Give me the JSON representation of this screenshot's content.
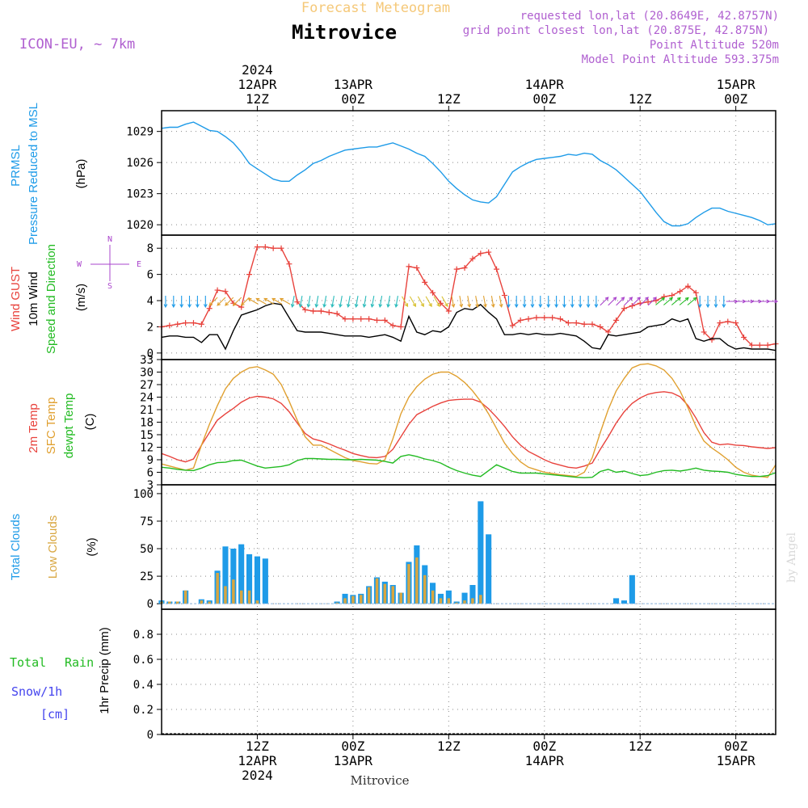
{
  "header": {
    "product": "Forecast Meteogram",
    "location": "Mitrovice",
    "model": "ICON-EU, ~ 7km",
    "requested": "requested lon,lat (20.8649E, 42.8757N)",
    "grid_point": "grid point closest lon,lat (20.875E, 42.875N)",
    "point_altitude": "Point Altitude 520m",
    "model_altitude": "Model Point Altitude 593.375m",
    "footer_location": "Mitrovice",
    "watermark": "by Angel"
  },
  "time_axis": {
    "year": "2024",
    "top": [
      {
        "hour": 12,
        "line1": "2024",
        "line2": "12APR",
        "line3": "12Z"
      },
      {
        "hour": 24,
        "line1": "",
        "line2": "13APR",
        "line3": "00Z"
      },
      {
        "hour": 36,
        "line1": "",
        "line2": "",
        "line3": "12Z"
      },
      {
        "hour": 48,
        "line1": "",
        "line2": "14APR",
        "line3": "00Z"
      },
      {
        "hour": 60,
        "line1": "",
        "line2": "",
        "line3": "12Z"
      },
      {
        "hour": 72,
        "line1": "",
        "line2": "15APR",
        "line3": "00Z"
      }
    ],
    "bottom": [
      {
        "hour": 12,
        "line1": "12Z",
        "line2": "12APR",
        "line3": "2024"
      },
      {
        "hour": 24,
        "line1": "00Z",
        "line2": "13APR",
        "line3": ""
      },
      {
        "hour": 36,
        "line1": "12Z",
        "line2": "",
        "line3": ""
      },
      {
        "hour": 48,
        "line1": "00Z",
        "line2": "14APR",
        "line3": ""
      },
      {
        "hour": 60,
        "line1": "12Z",
        "line2": "",
        "line3": ""
      },
      {
        "hour": 72,
        "line1": "00Z",
        "line2": "15APR",
        "line3": ""
      }
    ],
    "start_hour": 0,
    "end_hour": 77
  },
  "colors": {
    "pressure": "#1e9be8",
    "gust": "#e8423c",
    "wind": "#000000",
    "direction_label": "#22bb22",
    "temp2m": "#e8423c",
    "sfc": "#e0a030",
    "dewpt": "#22bb22",
    "total_clouds": "#1e9be8",
    "low_clouds": "#d8a640",
    "rain": "#22bb22",
    "snow": "#4444ee",
    "compass": "#aa44cc",
    "header_orange": "#f5c878",
    "header_purple": "#b060d0",
    "grid": "#888888"
  },
  "chart_data": [
    {
      "type": "line",
      "id": "pressure",
      "labels": [
        "PRMSL",
        "Pressure Reduced to MSL"
      ],
      "ylabel": "(hPa)",
      "ylim": [
        1019,
        1031
      ],
      "yticks": [
        1020,
        1023,
        1026,
        1029
      ],
      "grid": true,
      "x": [
        0,
        1,
        2,
        3,
        4,
        5,
        6,
        7,
        8,
        9,
        10,
        11,
        12,
        13,
        14,
        15,
        16,
        17,
        18,
        19,
        20,
        21,
        22,
        23,
        24,
        25,
        26,
        27,
        28,
        29,
        30,
        31,
        32,
        33,
        34,
        35,
        36,
        37,
        38,
        39,
        40,
        41,
        42,
        43,
        44,
        45,
        46,
        47,
        48,
        49,
        50,
        51,
        52,
        53,
        54,
        55,
        56,
        57,
        58,
        59,
        60,
        61,
        62,
        63,
        64,
        65,
        66,
        67,
        68,
        69,
        70,
        71,
        72,
        73,
        74,
        75,
        76,
        77
      ],
      "series": [
        {
          "name": "PRMSL",
          "values": [
            1029.3,
            1029.4,
            1029.4,
            1029.7,
            1029.9,
            1029.5,
            1029.1,
            1029.0,
            1028.5,
            1027.9,
            1027.0,
            1025.9,
            1025.4,
            1024.9,
            1024.4,
            1024.2,
            1024.2,
            1024.8,
            1025.3,
            1025.9,
            1026.2,
            1026.6,
            1026.9,
            1027.2,
            1027.3,
            1027.4,
            1027.5,
            1027.5,
            1027.7,
            1027.9,
            1027.6,
            1027.3,
            1026.9,
            1026.6,
            1025.9,
            1025.1,
            1024.2,
            1023.5,
            1022.9,
            1022.4,
            1022.2,
            1022.1,
            1022.7,
            1023.9,
            1025.1,
            1025.6,
            1026.0,
            1026.3,
            1026.4,
            1026.5,
            1026.6,
            1026.8,
            1026.7,
            1026.9,
            1026.8,
            1026.2,
            1025.8,
            1025.3,
            1024.6,
            1023.9,
            1023.2,
            1022.2,
            1021.2,
            1020.3,
            1019.9,
            1019.9,
            1020.1,
            1020.7,
            1021.2,
            1021.6,
            1021.6,
            1021.3,
            1021.1,
            1020.9,
            1020.7,
            1020.4,
            1020.0,
            1020.1
          ]
        }
      ]
    },
    {
      "type": "line",
      "id": "wind",
      "labels": [
        "Wind GUST",
        "10m Wind",
        "Speed and Direction"
      ],
      "ylabel": "(m/s)",
      "ylim": [
        -0.5,
        9
      ],
      "yticks": [
        0,
        2,
        4,
        6,
        8
      ],
      "grid": true,
      "compass": {
        "n": "N",
        "w": "W",
        "e": "E",
        "s": "S"
      },
      "x": [
        0,
        1,
        2,
        3,
        4,
        5,
        6,
        7,
        8,
        9,
        10,
        11,
        12,
        13,
        14,
        15,
        16,
        17,
        18,
        19,
        20,
        21,
        22,
        23,
        24,
        25,
        26,
        27,
        28,
        29,
        30,
        31,
        32,
        33,
        34,
        35,
        36,
        37,
        38,
        39,
        40,
        41,
        42,
        43,
        44,
        45,
        46,
        47,
        48,
        49,
        50,
        51,
        52,
        53,
        54,
        55,
        56,
        57,
        58,
        59,
        60,
        61,
        62,
        63,
        64,
        65,
        66,
        67,
        68,
        69,
        70,
        71,
        72,
        73,
        74,
        75,
        76,
        77
      ],
      "series": [
        {
          "name": "Wind GUST",
          "values": [
            2.0,
            2.1,
            2.2,
            2.3,
            2.3,
            2.2,
            3.4,
            4.8,
            4.7,
            3.8,
            3.5,
            6.0,
            8.1,
            8.1,
            8.0,
            8.0,
            6.8,
            3.9,
            3.3,
            3.2,
            3.2,
            3.1,
            3.0,
            2.6,
            2.6,
            2.6,
            2.6,
            2.5,
            2.5,
            2.1,
            2.0,
            6.6,
            6.5,
            5.4,
            4.6,
            3.8,
            3.2,
            6.4,
            6.5,
            7.2,
            7.6,
            7.7,
            6.4,
            4.4,
            2.1,
            2.5,
            2.6,
            2.7,
            2.7,
            2.7,
            2.6,
            2.3,
            2.3,
            2.2,
            2.2,
            2.0,
            1.6,
            2.5,
            3.4,
            3.6,
            3.8,
            3.9,
            4.0,
            4.3,
            4.4,
            4.7,
            5.1,
            4.6,
            1.6,
            1.0,
            2.3,
            2.4,
            2.3,
            1.2,
            0.6,
            0.6,
            0.6,
            0.7
          ]
        },
        {
          "name": "10m Wind",
          "values": [
            1.2,
            1.3,
            1.3,
            1.2,
            1.2,
            0.8,
            1.4,
            1.4,
            0.3,
            1.7,
            2.9,
            3.1,
            3.3,
            3.6,
            3.8,
            3.7,
            2.7,
            1.7,
            1.6,
            1.6,
            1.6,
            1.5,
            1.4,
            1.3,
            1.3,
            1.3,
            1.2,
            1.3,
            1.4,
            1.2,
            0.9,
            2.8,
            1.6,
            1.4,
            1.7,
            1.6,
            2.0,
            3.1,
            3.4,
            3.3,
            3.7,
            3.1,
            2.6,
            1.4,
            1.4,
            1.5,
            1.4,
            1.5,
            1.4,
            1.4,
            1.5,
            1.4,
            1.3,
            0.9,
            0.4,
            0.3,
            1.4,
            1.3,
            1.4,
            1.5,
            1.6,
            2.0,
            2.1,
            2.2,
            2.6,
            2.4,
            2.6,
            1.1,
            0.9,
            1.1,
            1.1,
            0.6,
            0.3,
            0.4,
            0.3,
            0.3,
            0.3,
            0.2
          ]
        }
      ]
    },
    {
      "type": "line",
      "id": "temperature",
      "labels": [
        "2m Temp",
        "SFC Temp",
        "dewpt Temp"
      ],
      "ylabel": "(C)",
      "ylim": [
        3,
        33
      ],
      "yticks": [
        3,
        6,
        9,
        12,
        15,
        18,
        21,
        24,
        27,
        30,
        33
      ],
      "grid": true,
      "x": [
        0,
        1,
        2,
        3,
        4,
        5,
        6,
        7,
        8,
        9,
        10,
        11,
        12,
        13,
        14,
        15,
        16,
        17,
        18,
        19,
        20,
        21,
        22,
        23,
        24,
        25,
        26,
        27,
        28,
        29,
        30,
        31,
        32,
        33,
        34,
        35,
        36,
        37,
        38,
        39,
        40,
        41,
        42,
        43,
        44,
        45,
        46,
        47,
        48,
        49,
        50,
        51,
        52,
        53,
        54,
        55,
        56,
        57,
        58,
        59,
        60,
        61,
        62,
        63,
        64,
        65,
        66,
        67,
        68,
        69,
        70,
        71,
        72,
        73,
        74,
        75,
        76,
        77
      ],
      "series": [
        {
          "name": "2m Temp",
          "values": [
            10.5,
            9.8,
            9.0,
            8.5,
            9.2,
            12.5,
            15.5,
            18.5,
            20.0,
            21.3,
            22.8,
            23.8,
            24.2,
            24.0,
            23.6,
            22.5,
            20.5,
            17.8,
            15.3,
            14.0,
            13.5,
            12.8,
            12.0,
            11.3,
            10.5,
            10.0,
            9.6,
            9.5,
            9.8,
            11.5,
            14.5,
            17.5,
            19.8,
            20.8,
            21.8,
            22.6,
            23.2,
            23.4,
            23.5,
            23.5,
            22.8,
            21.2,
            19.2,
            17.0,
            14.5,
            12.5,
            11.0,
            10.0,
            9.0,
            8.2,
            7.7,
            7.2,
            7.0,
            7.5,
            8.2,
            11.5,
            14.5,
            17.8,
            20.5,
            22.5,
            23.8,
            24.7,
            25.1,
            25.3,
            25.0,
            24.1,
            22.0,
            19.0,
            15.5,
            13.2,
            12.6,
            12.8,
            12.5,
            12.4,
            12.1,
            11.9,
            11.7,
            11.9
          ]
        },
        {
          "name": "SFC Temp",
          "values": [
            8.0,
            7.5,
            7.0,
            6.5,
            7.0,
            12.5,
            17.5,
            22.0,
            26.0,
            28.5,
            30.0,
            31.0,
            31.3,
            30.5,
            29.5,
            27.0,
            23.0,
            18.5,
            14.5,
            12.5,
            12.5,
            11.5,
            10.5,
            9.5,
            8.8,
            8.5,
            8.1,
            8.0,
            9.0,
            14.0,
            20.0,
            24.0,
            26.5,
            28.3,
            29.5,
            30.0,
            30.0,
            29.0,
            27.5,
            25.5,
            23.0,
            20.0,
            16.5,
            13.0,
            10.5,
            8.5,
            7.2,
            6.6,
            6.0,
            5.7,
            5.4,
            5.2,
            5.0,
            6.0,
            9.5,
            15.5,
            21.0,
            25.5,
            28.5,
            31.0,
            31.8,
            32.0,
            31.5,
            30.5,
            28.5,
            25.5,
            21.5,
            17.0,
            13.5,
            11.8,
            10.5,
            9.0,
            7.2,
            6.0,
            5.3,
            5.0,
            4.8,
            7.8
          ]
        },
        {
          "name": "dewpt Temp",
          "values": [
            7.2,
            7.0,
            6.7,
            6.5,
            6.4,
            7.0,
            7.8,
            8.3,
            8.4,
            8.8,
            8.9,
            8.2,
            7.5,
            7.0,
            7.2,
            7.4,
            7.8,
            8.8,
            9.3,
            9.3,
            9.2,
            9.1,
            9.1,
            9.0,
            9.0,
            9.1,
            9.0,
            8.9,
            8.6,
            8.2,
            9.8,
            10.2,
            9.8,
            9.2,
            8.8,
            8.2,
            7.2,
            6.4,
            5.8,
            5.3,
            5.0,
            6.4,
            7.8,
            7.0,
            6.2,
            5.8,
            5.8,
            5.8,
            5.6,
            5.4,
            5.2,
            5.0,
            4.8,
            4.7,
            4.8,
            6.2,
            6.7,
            6.0,
            6.3,
            5.7,
            5.2,
            5.4,
            6.0,
            6.4,
            6.5,
            6.3,
            6.6,
            7.0,
            6.5,
            6.3,
            6.2,
            6.0,
            5.5,
            5.2,
            5.0,
            5.0,
            5.2,
            5.9
          ]
        }
      ]
    },
    {
      "type": "bar",
      "id": "clouds",
      "labels": [
        "Total Clouds",
        "Low Clouds"
      ],
      "ylabel": "(%)",
      "ylim": [
        -5,
        108
      ],
      "yticks": [
        0,
        25,
        50,
        75,
        100
      ],
      "grid": true,
      "x": [
        0,
        1,
        2,
        3,
        4,
        5,
        6,
        7,
        8,
        9,
        10,
        11,
        12,
        13,
        14,
        15,
        16,
        17,
        18,
        19,
        20,
        21,
        22,
        23,
        24,
        25,
        26,
        27,
        28,
        29,
        30,
        31,
        32,
        33,
        34,
        35,
        36,
        37,
        38,
        39,
        40,
        41,
        42,
        43,
        44,
        45,
        46,
        47,
        48,
        49,
        50,
        51,
        52,
        53,
        54,
        55,
        56,
        57,
        58,
        59,
        60,
        61,
        62,
        63,
        64,
        65,
        66,
        67,
        68,
        69,
        70,
        71,
        72,
        73,
        74,
        75,
        76,
        77
      ],
      "series": [
        {
          "name": "Total Clouds",
          "values": [
            3,
            2,
            2,
            12,
            0,
            4,
            3,
            30,
            52,
            50,
            54,
            45,
            43,
            41,
            0,
            0,
            0,
            0,
            0,
            0,
            0,
            0,
            2,
            9,
            8,
            9,
            16,
            24,
            20,
            17,
            10,
            38,
            53,
            35,
            19,
            9,
            12,
            2,
            10,
            17,
            93,
            63,
            0,
            0,
            0,
            0,
            0,
            0,
            0,
            0,
            0,
            0,
            0,
            0,
            0,
            0,
            0,
            5,
            3,
            26,
            0,
            0,
            0,
            0,
            0,
            0,
            0,
            0,
            0,
            0,
            0,
            0,
            0,
            0,
            0,
            0,
            0,
            0
          ]
        },
        {
          "name": "Low Clouds",
          "values": [
            2,
            2,
            2,
            12,
            0,
            3,
            2,
            28,
            16,
            22,
            12,
            12,
            3,
            0,
            0,
            0,
            0,
            0,
            0,
            0,
            0,
            0,
            1,
            5,
            7,
            8,
            15,
            23,
            18,
            16,
            10,
            36,
            42,
            26,
            12,
            5,
            5,
            1,
            3,
            5,
            8,
            0,
            0,
            0,
            0,
            0,
            0,
            0,
            0,
            0,
            0,
            0,
            0,
            0,
            0,
            0,
            0,
            0,
            0,
            0,
            0,
            0,
            0,
            0,
            0,
            0,
            0,
            0,
            0,
            0,
            0,
            0,
            0,
            0,
            0,
            0,
            0,
            0
          ]
        }
      ]
    },
    {
      "type": "bar",
      "id": "precip",
      "labels": [
        "Total",
        "Rain",
        "Snow/1h",
        "[cm]"
      ],
      "ylabel": "1hr Precip (mm)",
      "ylim": [
        0,
        1
      ],
      "yticks": [
        0,
        0.2,
        0.4,
        0.6,
        0.8
      ],
      "grid": true,
      "x": [],
      "series": [
        {
          "name": "Total",
          "values": []
        }
      ]
    }
  ]
}
